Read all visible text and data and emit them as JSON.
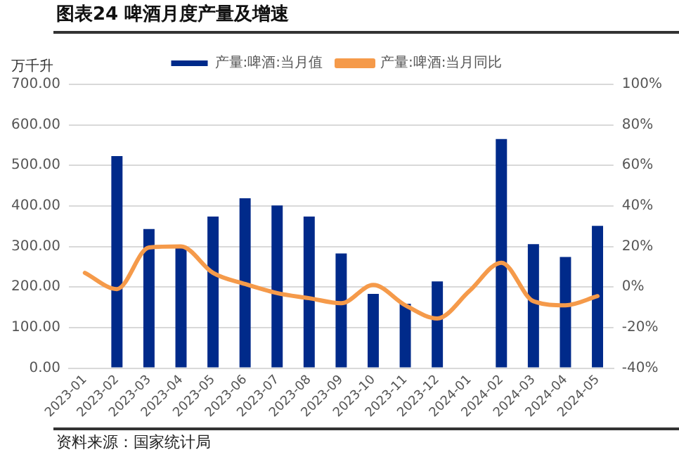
{
  "chart_data": {
    "type": "bar",
    "title": "图表24 啤酒月度产量及增速",
    "ylabel": "万千升",
    "categories": [
      "2023-01",
      "2023-02",
      "2023-03",
      "2023-04",
      "2023-05",
      "2023-06",
      "2023-07",
      "2023-08",
      "2023-09",
      "2023-10",
      "2023-11",
      "2023-12",
      "2024-01",
      "2024-02",
      "2024-03",
      "2024-04",
      "2024-05"
    ],
    "series": [
      {
        "name": "产量:啤酒:当月值",
        "color": "#002a8a",
        "values": [
          null,
          523,
          343,
          301,
          374,
          419,
          401,
          374,
          283,
          183,
          159,
          214,
          null,
          565,
          306,
          274,
          351
        ]
      },
      {
        "name": "产量:啤酒:当月同比",
        "type": "line",
        "axis": "y2",
        "color": "#f59a4a",
        "values": [
          7,
          -1,
          19.5,
          20,
          7,
          1.5,
          -3,
          -5.5,
          -8,
          1,
          -9,
          -15.5,
          -2,
          12,
          -7,
          -9,
          -4.5
        ]
      }
    ],
    "ylim": [
      0,
      700
    ],
    "yticks": [
      {
        "value": 0,
        "label": "0.00"
      },
      {
        "value": 100,
        "label": "100.00"
      },
      {
        "value": 200,
        "label": "200.00"
      },
      {
        "value": 300,
        "label": "300.00"
      },
      {
        "value": 400,
        "label": "400.00"
      },
      {
        "value": 500,
        "label": "500.00"
      },
      {
        "value": 600,
        "label": "600.00"
      },
      {
        "value": 700,
        "label": "700.00"
      }
    ],
    "y2lim": [
      -40,
      100
    ],
    "y2ticks": [
      {
        "value": -40,
        "label": "-40%"
      },
      {
        "value": -20,
        "label": "-20%"
      },
      {
        "value": 0,
        "label": "0%"
      },
      {
        "value": 20,
        "label": "20%"
      },
      {
        "value": 40,
        "label": "40%"
      },
      {
        "value": 60,
        "label": "60%"
      },
      {
        "value": 80,
        "label": "80%"
      },
      {
        "value": 100,
        "label": "100%"
      }
    ],
    "grid": "y",
    "legend": "top",
    "marker": "none",
    "line_style": "solid",
    "annotations": [
      "资料来源：国家统计局"
    ]
  }
}
